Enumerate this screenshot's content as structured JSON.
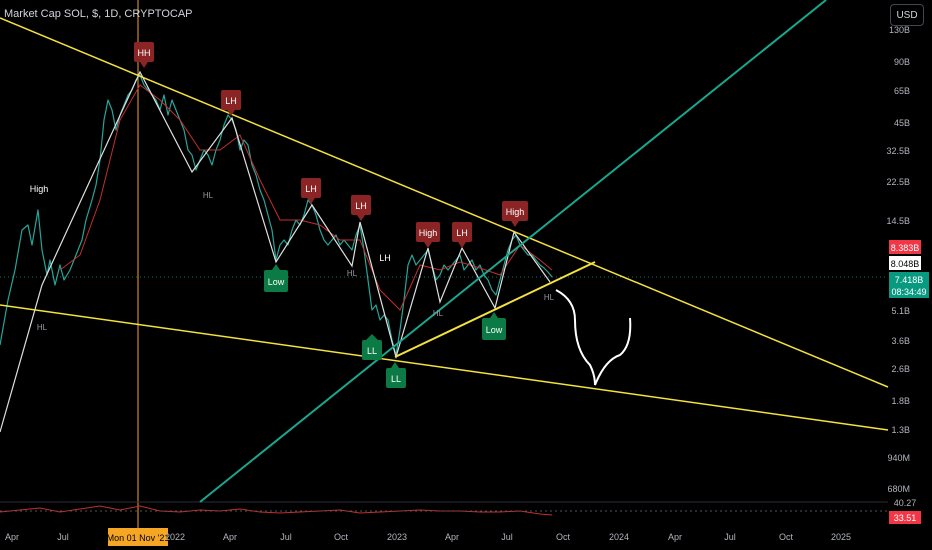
{
  "header": {
    "title": "Market Cap SOL, $, 1D, CRYPTOCAP",
    "currency_button": "USD"
  },
  "crosshair": {
    "date_label": "Mon 01 Nov '21"
  },
  "price_labels": {
    "upper": "8.383B",
    "mid": "8.048B",
    "current": "7.418B",
    "countdown": "08:34:49"
  },
  "rsi": {
    "value_top": "40.27",
    "value_current": "33.51"
  },
  "colors": {
    "background": "#000000",
    "trendline_yellow": "#f5e23c",
    "trendline_teal": "#1aa68f",
    "ma_red": "#c22f2f",
    "candle_up": "#26a69a",
    "crosshair": "#f5a623",
    "label_red": "#8b2424",
    "label_green": "#0b7a45"
  },
  "chart_data": {
    "type": "line",
    "title": "Market Cap SOL, $, 1D, CRYPTOCAP",
    "y_scale": "log",
    "y_unit": "USD market cap",
    "y_ticks": [
      "130B",
      "90B",
      "65B",
      "45B",
      "32.5B",
      "22.5B",
      "14.5B",
      "8.048B",
      "5.1B",
      "3.6B",
      "2.6B",
      "1.8B",
      "1.3B",
      "940M",
      "680M"
    ],
    "x_ticks": [
      "Apr",
      "Jul",
      "Oct",
      "2022",
      "Apr",
      "Jul",
      "Oct",
      "2023",
      "Apr",
      "Jul",
      "Oct",
      "2024",
      "Apr",
      "Jul",
      "Oct",
      "2025"
    ],
    "series": [
      {
        "values": [
          [
            2021.0,
            2.6
          ],
          [
            2021.08,
            6
          ],
          [
            2021.18,
            12
          ],
          [
            2021.28,
            18
          ],
          [
            2021.34,
            8
          ],
          [
            2021.4,
            7
          ],
          [
            2021.46,
            10
          ],
          [
            2021.52,
            7
          ],
          [
            2021.57,
            13
          ],
          [
            2021.62,
            30
          ],
          [
            2021.65,
            55
          ],
          [
            2021.7,
            65
          ],
          [
            2021.76,
            60
          ],
          [
            2021.83,
            80
          ],
          [
            2021.88,
            72
          ],
          [
            2021.95,
            60
          ],
          [
            2022.05,
            45
          ],
          [
            2022.12,
            30
          ],
          [
            2022.17,
            28
          ],
          [
            2022.22,
            35
          ],
          [
            2022.27,
            60
          ],
          [
            2022.32,
            35
          ],
          [
            2022.38,
            20
          ],
          [
            2022.45,
            11
          ],
          [
            2022.48,
            12
          ],
          [
            2022.55,
            14
          ],
          [
            2022.6,
            17
          ],
          [
            2022.66,
            13
          ],
          [
            2022.75,
            11
          ],
          [
            2022.82,
            12
          ],
          [
            2022.86,
            10
          ],
          [
            2022.9,
            5
          ],
          [
            2022.94,
            4.5
          ],
          [
            2022.96,
            4.2
          ],
          [
            2022.99,
            3.3
          ],
          [
            2023.04,
            7
          ],
          [
            2023.08,
            9
          ],
          [
            2023.15,
            8
          ],
          [
            2023.2,
            10
          ],
          [
            2023.26,
            7
          ],
          [
            2023.3,
            9
          ],
          [
            2023.37,
            10
          ],
          [
            2023.45,
            8
          ],
          [
            2023.5,
            7
          ],
          [
            2023.53,
            5.5
          ],
          [
            2023.58,
            8
          ],
          [
            2023.62,
            9
          ],
          [
            2023.66,
            11
          ],
          [
            2023.72,
            9
          ],
          [
            2023.78,
            7.4
          ]
        ]
      }
    ],
    "annotations": [
      "HH",
      "LH",
      "LH",
      "LH",
      "High",
      "LH",
      "High",
      "High",
      "Low",
      "LL",
      "LL",
      "Low",
      "HL",
      "HL",
      "HL",
      "HL",
      "HL",
      "LH",
      "HL"
    ]
  }
}
